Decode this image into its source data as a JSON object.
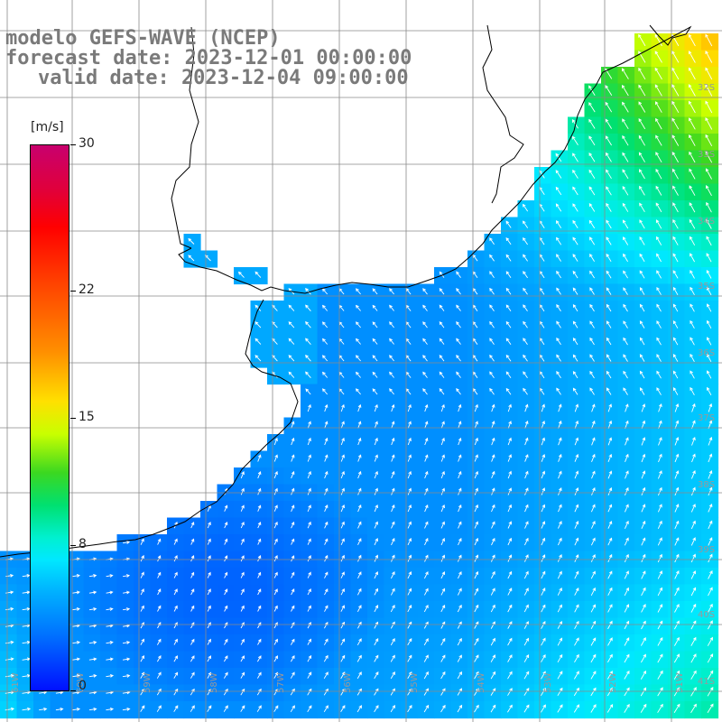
{
  "title": {
    "line1": "modelo GEFS-WAVE (NCEP)",
    "line2": "forecast date: 2023-12-01 00:00:00",
    "line3": "valid date: 2023-12-04 09:00:00"
  },
  "colorbar": {
    "unit": "[m/s]",
    "min": 0,
    "max": 30,
    "ticks": [
      "30",
      "22",
      "15",
      "8",
      "0"
    ],
    "tick_values": [
      30,
      22,
      15,
      8,
      0
    ]
  },
  "grid_labels": {
    "lat": [
      "32S",
      "33S",
      "34S",
      "35S",
      "36S",
      "37S",
      "38S",
      "39S",
      "40S",
      "41S"
    ],
    "lon": [
      "61W",
      "60W",
      "59W",
      "58W",
      "57W",
      "56W",
      "55W",
      "54W",
      "53W",
      "52W",
      "51W"
    ]
  },
  "colors": {
    "land": "#ffffff",
    "coast": "#000000",
    "grid": "#8a8a8a",
    "arrow": "#ffffff",
    "title": "#7a7a7a"
  }
}
